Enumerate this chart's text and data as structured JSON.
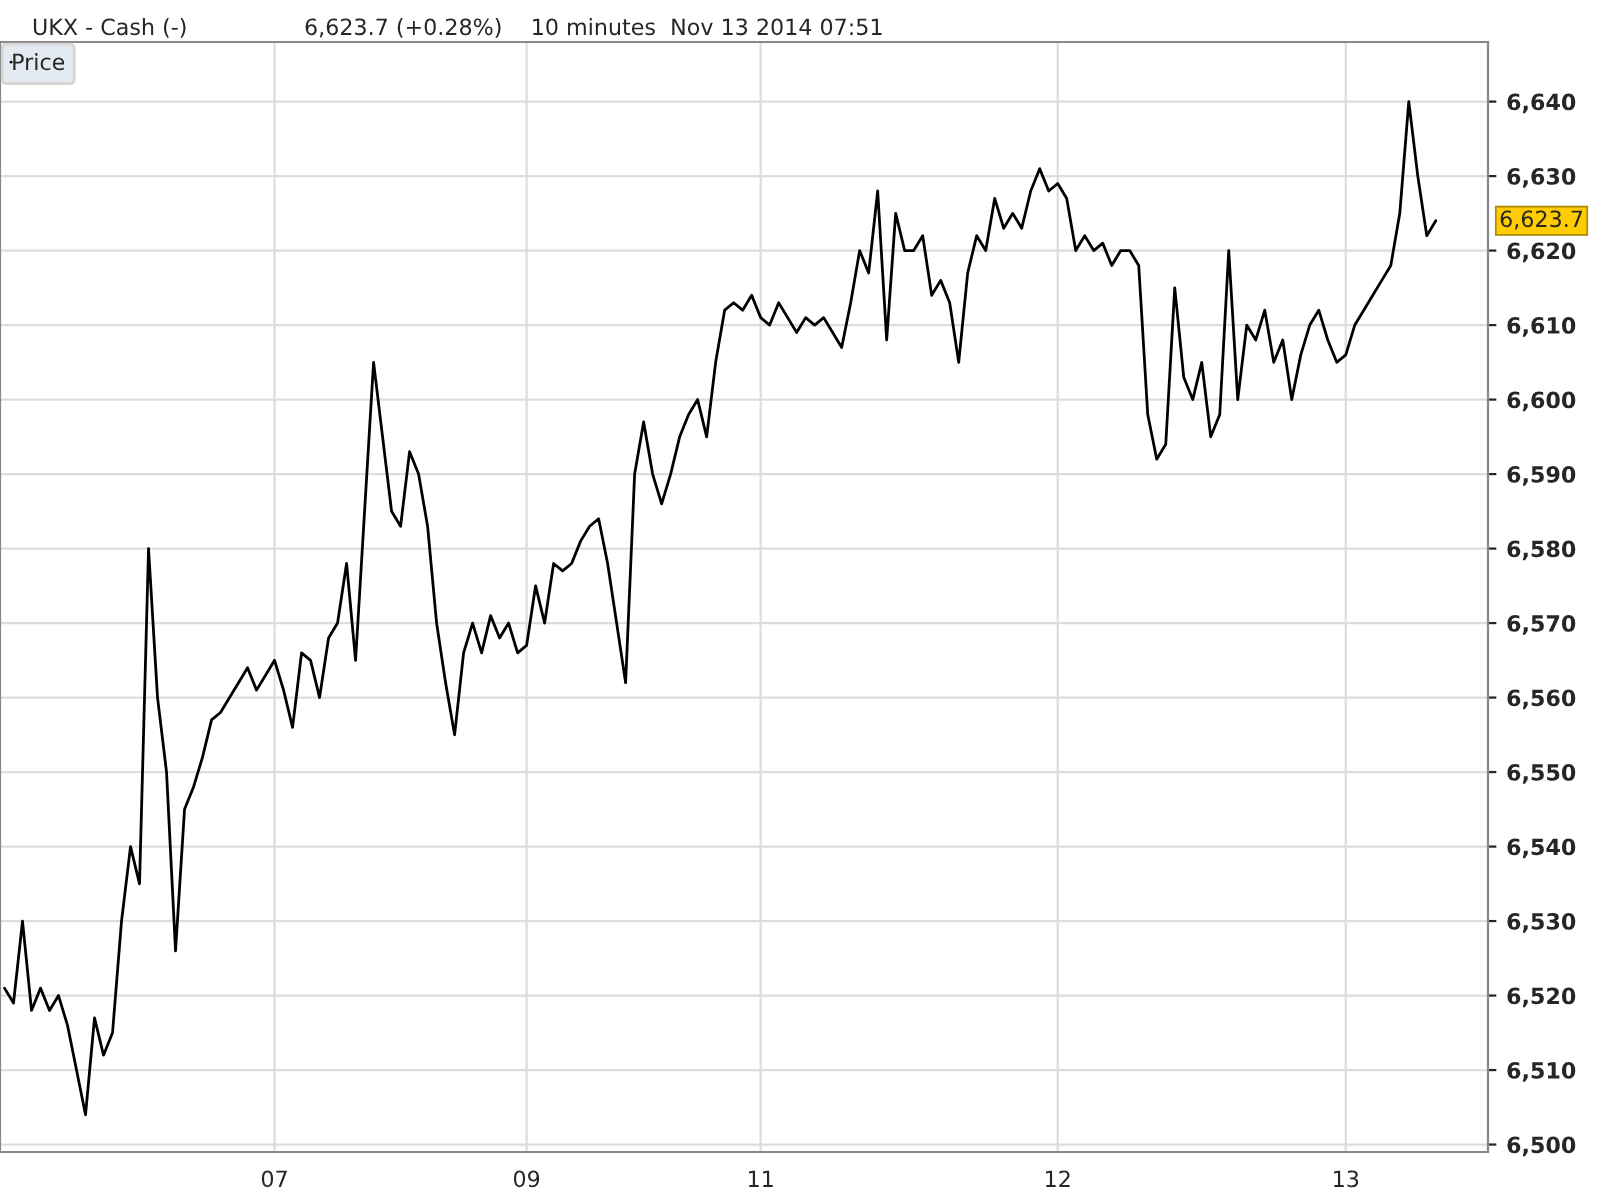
{
  "chart_data": {
    "type": "line",
    "title": "UKX - Cash (-)",
    "subtitle": "6,623.7 (+0.28%)    10 minutes  Nov 13 2014 07:51",
    "categories": [
      null,
      null,
      null,
      null,
      null,
      null,
      null,
      null,
      null,
      null,
      null,
      null,
      null,
      null,
      null,
      null,
      null,
      null,
      null,
      null,
      null,
      null,
      null,
      null,
      null,
      null,
      null,
      null,
      null,
      null,
      "07",
      null,
      null,
      null,
      null,
      null,
      null,
      null,
      null,
      null,
      null,
      null,
      null,
      null,
      null,
      null,
      null,
      null,
      null,
      null,
      null,
      null,
      null,
      null,
      null,
      null,
      null,
      null,
      "09",
      null,
      null,
      null,
      null,
      null,
      null,
      null,
      null,
      null,
      null,
      null,
      null,
      null,
      null,
      null,
      null,
      null,
      null,
      null,
      null,
      null,
      null,
      null,
      null,
      null,
      "11",
      null,
      null,
      null,
      null,
      null,
      null,
      null,
      null,
      null,
      null,
      null,
      null,
      null,
      null,
      null,
      null,
      null,
      null,
      null,
      null,
      null,
      null,
      null,
      null,
      null,
      null,
      null,
      null,
      null,
      null,
      null,
      null,
      "12",
      null,
      null,
      null,
      null,
      null,
      null,
      null,
      null,
      null,
      null,
      null,
      null,
      null,
      null,
      null,
      null,
      null,
      null,
      null,
      null,
      null,
      null,
      null,
      null,
      null,
      null,
      null,
      null,
      null,
      null,
      null,
      "13",
      null,
      null,
      null,
      null,
      null,
      null,
      null,
      null,
      null,
      null
    ],
    "series": [
      {
        "name": "Price",
        "color": "#000000",
        "values": [
          6521,
          6519,
          6530,
          6518,
          6521,
          6518,
          6520,
          6516,
          6510,
          6504,
          6517,
          6512,
          6515,
          6530,
          6540,
          6535,
          6580,
          6560,
          6550,
          6526,
          6545,
          6548,
          6552,
          6557,
          6558,
          6560,
          6562,
          6564,
          6561,
          6563,
          6565,
          6561,
          6556,
          6566,
          6565,
          6560,
          6568,
          6570,
          6578,
          6565,
          6585,
          6605,
          6595,
          6585,
          6583,
          6593,
          6590,
          6583,
          6570,
          6562,
          6555,
          6566,
          6570,
          6566,
          6571,
          6568,
          6570,
          6566,
          6567,
          6575,
          6570,
          6578,
          6577,
          6578,
          6581,
          6583,
          6584,
          6578,
          6570,
          6562,
          6590,
          6597,
          6590,
          6586,
          6590,
          6595,
          6598,
          6600,
          6595,
          6605,
          6612,
          6613,
          6612,
          6614,
          6611,
          6610,
          6613,
          6611,
          6609,
          6611,
          6610,
          6611,
          6609,
          6607,
          6613,
          6620,
          6617,
          6628,
          6608,
          6625,
          6620,
          6620,
          6622,
          6614,
          6616,
          6613,
          6605,
          6617,
          6622,
          6620,
          6627,
          6623,
          6625,
          6623,
          6628,
          6631,
          6628,
          6629,
          6627,
          6620,
          6622,
          6620,
          6621,
          6618,
          6620,
          6620,
          6618,
          6598,
          6592,
          6594,
          6615,
          6603,
          6600,
          6605,
          6595,
          6598,
          6620,
          6600,
          6610,
          6608,
          6612,
          6605,
          6608,
          6600,
          6606,
          6610,
          6612,
          6608,
          6605,
          6606,
          6610,
          6612,
          6614,
          6616,
          6618,
          6625,
          6640,
          6630,
          6622,
          6624
        ]
      }
    ],
    "ylim": [
      6499,
      6648
    ],
    "yticks": [
      {
        "value": 6500,
        "label": "6,500"
      },
      {
        "value": 6510,
        "label": "6,510"
      },
      {
        "value": 6520,
        "label": "6,520"
      },
      {
        "value": 6530,
        "label": "6,530"
      },
      {
        "value": 6540,
        "label": "6,540"
      },
      {
        "value": 6550,
        "label": "6,550"
      },
      {
        "value": 6560,
        "label": "6,560"
      },
      {
        "value": 6570,
        "label": "6,570"
      },
      {
        "value": 6580,
        "label": "6,580"
      },
      {
        "value": 6590,
        "label": "6,590"
      },
      {
        "value": 6600,
        "label": "6,600"
      },
      {
        "value": 6610,
        "label": "6,610"
      },
      {
        "value": 6620,
        "label": "6,620"
      },
      {
        "value": 6630,
        "label": "6,630"
      },
      {
        "value": 6640,
        "label": "6,640"
      }
    ],
    "annotations": [
      "6,623.7"
    ],
    "grid": true,
    "legend": "top left",
    "marker": "none",
    "line_style": "solid"
  }
}
